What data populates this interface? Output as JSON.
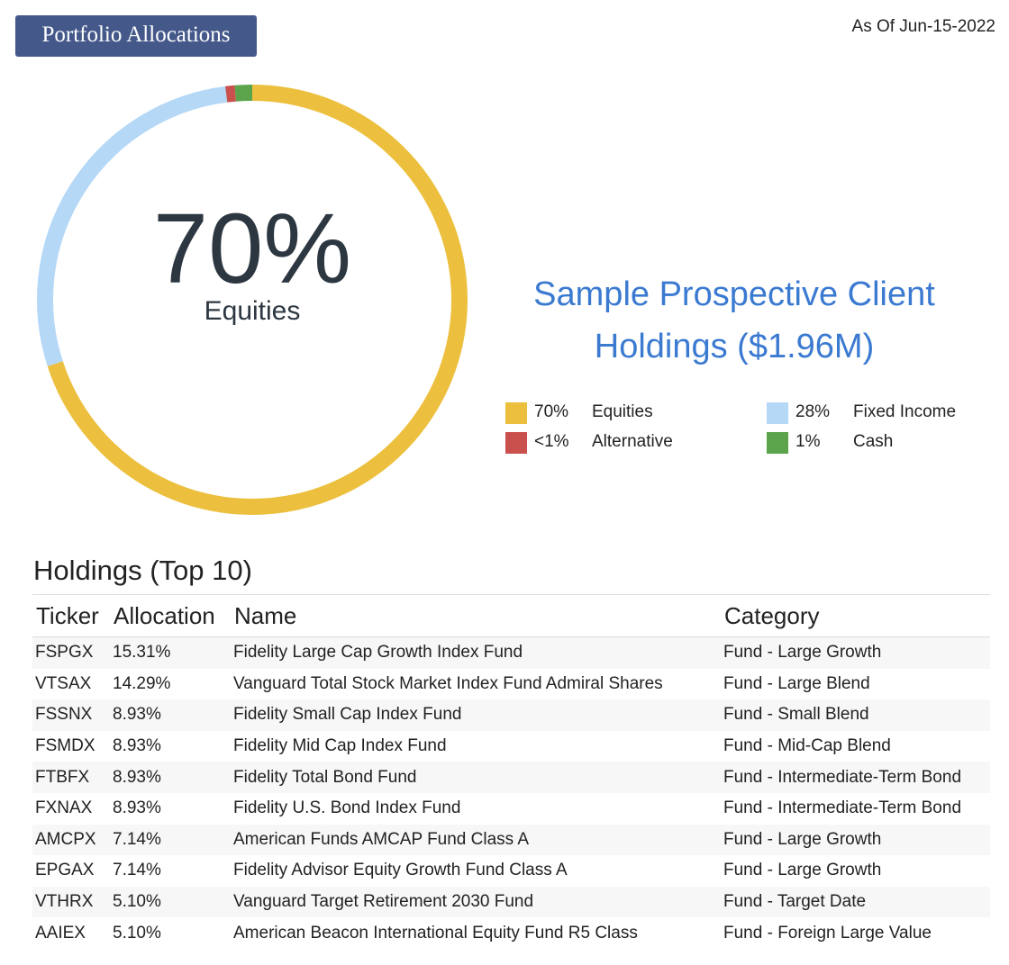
{
  "header": {
    "title": "Portfolio Allocations",
    "as_of": "As Of Jun-15-2022"
  },
  "donut": {
    "center_value": "70%",
    "center_label": "Equities"
  },
  "client": {
    "line1": "Sample Prospective Client",
    "line2": "Holdings ($1.96M)"
  },
  "legend": [
    {
      "pct": "70%",
      "name": "Equities",
      "color": "#ecc03e"
    },
    {
      "pct": "28%",
      "name": "Fixed Income",
      "color": "#b5d8f7"
    },
    {
      "pct": "<1%",
      "name": "Alternative",
      "color": "#c9504c"
    },
    {
      "pct": "1%",
      "name": "Cash",
      "color": "#5ba44c"
    }
  ],
  "chart_data": {
    "type": "pie",
    "categories": [
      "Equities",
      "Fixed Income",
      "Alternative",
      "Cash"
    ],
    "values": [
      70,
      28,
      0.7,
      1.3
    ],
    "colors": [
      "#ecc03e",
      "#b5d8f7",
      "#c9504c",
      "#5ba44c"
    ]
  },
  "holdings": {
    "title": "Holdings (Top 10)",
    "columns": [
      "Ticker",
      "Allocation",
      "Name",
      "Category"
    ],
    "rows": [
      [
        "FSPGX",
        "15.31%",
        "Fidelity Large Cap Growth Index Fund",
        "Fund - Large Growth"
      ],
      [
        "VTSAX",
        "14.29%",
        "Vanguard Total Stock Market Index Fund Admiral Shares",
        "Fund - Large Blend"
      ],
      [
        "FSSNX",
        "8.93%",
        "Fidelity Small Cap Index Fund",
        "Fund - Small Blend"
      ],
      [
        "FSMDX",
        "8.93%",
        "Fidelity Mid Cap Index Fund",
        "Fund - Mid-Cap Blend"
      ],
      [
        "FTBFX",
        "8.93%",
        "Fidelity Total Bond Fund",
        "Fund - Intermediate-Term Bond"
      ],
      [
        "FXNAX",
        "8.93%",
        "Fidelity U.S. Bond Index Fund",
        "Fund - Intermediate-Term Bond"
      ],
      [
        "AMCPX",
        "7.14%",
        "American Funds AMCAP Fund Class A",
        "Fund - Large Growth"
      ],
      [
        "EPGAX",
        "7.14%",
        "Fidelity Advisor Equity Growth Fund Class A",
        "Fund - Large Growth"
      ],
      [
        "VTHRX",
        "5.10%",
        "Vanguard Target Retirement 2030 Fund",
        "Fund - Target Date"
      ],
      [
        "AAIEX",
        "5.10%",
        "American Beacon International Equity Fund R5 Class",
        "Fund - Foreign Large Value"
      ]
    ]
  }
}
